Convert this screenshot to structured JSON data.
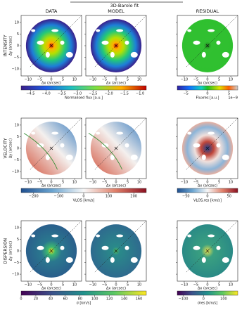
{
  "title": "3D-Barolo fit",
  "columns": [
    "DATA",
    "MODEL",
    "RESIDUAL"
  ],
  "rows": [
    {
      "label": "INTENSITY",
      "ylabel": "Δy (arcsec)"
    },
    {
      "label": "VELOCITY",
      "ylabel": "Δy (arcsec)"
    },
    {
      "label": "DISPERSION",
      "ylabel": "Δy (arcsec)"
    }
  ],
  "xlabel": "Δx (arcsec)",
  "xlim": [
    -13,
    13
  ],
  "ylim": [
    -13,
    13
  ],
  "xticks": [
    {
      "value": -10,
      "label": "−10"
    },
    {
      "value": -5,
      "label": "−5"
    },
    0,
    5,
    10
  ],
  "yticks": [
    {
      "value": -10,
      "label": "−10"
    },
    {
      "value": -5,
      "label": "−5"
    },
    0,
    5,
    10
  ],
  "colorbars": [
    {
      "label": "Normalised flux [a.u.]",
      "lim": [
        -4.8,
        -0.8
      ],
      "ticks": [
        {
          "value": -4.5,
          "label": "−4.5"
        },
        {
          "value": -4.0,
          "label": "−4.0"
        },
        {
          "value": -3.5,
          "label": "−3.5"
        },
        {
          "value": -3.0,
          "label": "−3.0"
        },
        {
          "value": -2.5,
          "label": "−2.5"
        },
        {
          "value": -2.0,
          "label": "−2.0"
        },
        {
          "value": -1.5,
          "label": "−1.5"
        },
        {
          "value": -1.0,
          "label": "−1.0"
        }
      ]
    },
    {
      "label": "Fluxres [a.u.]",
      "lim": [
        -7,
        7
      ],
      "ticks": [
        {
          "value": -5,
          "label": "−5"
        },
        0,
        5
      ],
      "offset_label": "1e−9"
    },
    {
      "label": "VLOS [km/s]",
      "lim": [
        -250,
        250
      ],
      "ticks": [
        {
          "value": -200,
          "label": "−200"
        },
        {
          "value": -100,
          "label": "−100"
        },
        0,
        100,
        200
      ]
    },
    {
      "label": "VLOS,res [km/s]",
      "lim": [
        -70,
        70
      ],
      "ticks": [
        {
          "value": -50,
          "label": "−50"
        },
        0,
        50
      ]
    },
    {
      "label": "σ [km/s]",
      "lim": [
        0,
        170
      ],
      "ticks": [
        0,
        20,
        40,
        60,
        80,
        100,
        120,
        140,
        160
      ]
    },
    {
      "label": "σres [km/s]",
      "lim": [
        -130,
        170
      ],
      "ticks": [
        {
          "value": -100,
          "label": "−100"
        },
        0,
        100
      ]
    }
  ]
}
